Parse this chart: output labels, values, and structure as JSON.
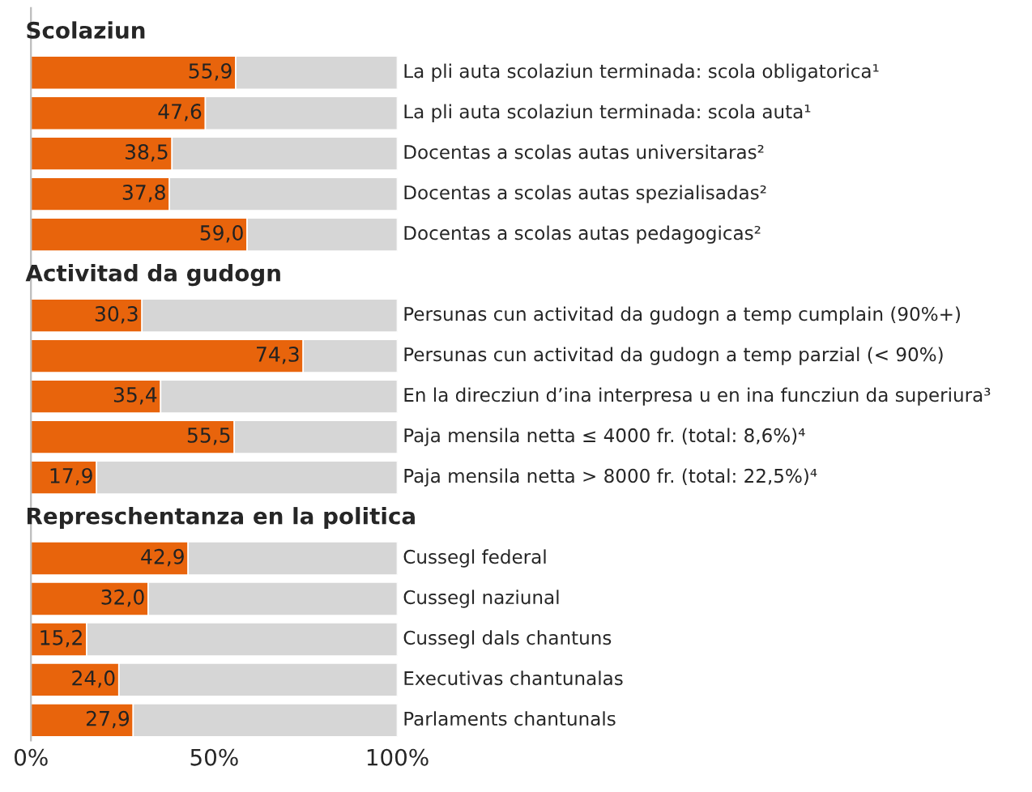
{
  "chart_data": {
    "type": "bar",
    "orientation": "horizontal",
    "stacked": true,
    "categories": [
      "Scolaziun",
      "La pli auta scolaziun terminada: scola obligatorica¹",
      "La pli auta scolaziun terminada: scola auta¹",
      "Docentas a scolas autas universitaras²",
      "Docentas a scolas autas spezialisadas²",
      "Docentas a scolas autas pedagogicas²",
      "Activitad da gudogn",
      "Persunas cun activitad da gudogn a temp cumplain (90%+)",
      "Persunas cun activitad da gudogn a temp parzial (< 90%)",
      "En la direcziun d’ina interpresa u en ina funcziun da superiura³",
      "Paja mensila netta ≤ 4000 fr. (total: 8,6%)⁴",
      "Paja mensila netta > 8000 fr. (total: 22,5%)⁴",
      "Represchentanza en la politica",
      "Cussegl federal",
      "Cussegl naziunal",
      "Cussegl dals chantuns",
      "Executivas chantunalas",
      "Parlaments chantunals"
    ],
    "series": [
      {
        "color": "#e8640c",
        "values": [
          null,
          55.9,
          47.6,
          38.5,
          37.8,
          59.0,
          null,
          30.3,
          74.3,
          35.4,
          55.5,
          17.9,
          null,
          42.9,
          32.0,
          15.2,
          24.0,
          27.9
        ],
        "value_labels": [
          null,
          "55,9",
          "47,6",
          "38,5",
          "37,8",
          "59,0",
          null,
          "30,3",
          "74,3",
          "35,4",
          "55,5",
          "17,9",
          null,
          "42,9",
          "32,0",
          "15,2",
          "24,0",
          "27,9"
        ]
      },
      {
        "color": "#d6d6d6",
        "values": [
          null,
          44.1,
          52.4,
          61.5,
          62.2,
          41.0,
          null,
          69.7,
          25.7,
          64.6,
          44.5,
          82.1,
          null,
          57.1,
          68.0,
          84.8,
          76.0,
          72.1
        ]
      }
    ],
    "xlim": [
      0,
      100
    ],
    "xticks": [
      {
        "value": 0,
        "label": "0%"
      },
      {
        "value": 50,
        "label": "50%"
      },
      {
        "value": 100,
        "label": "100%"
      }
    ]
  }
}
